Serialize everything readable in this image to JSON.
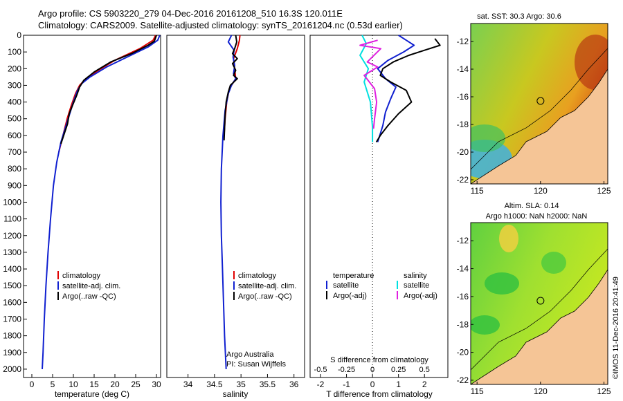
{
  "header": {
    "line1": "Argo profile: CS 5903220_279 04-Dec-2016 20161208_510 16.3S 120.011E",
    "line2": "Climatology: CARS2009. Satellite-adjusted climatology: synTS_20161204.nc (0.53d earlier)"
  },
  "colors": {
    "climatology": "#e00000",
    "satellite": "#1020d0",
    "argo": "#000000",
    "sal_sat": "#00e0e0",
    "sal_argo": "#e020e0"
  },
  "chart_data": [
    {
      "type": "line",
      "name": "temperature",
      "xlabel": "temperature (deg C)",
      "ylabel": "",
      "xlim": [
        -2,
        31
      ],
      "ylim": [
        2050,
        0
      ],
      "xticks": [
        0,
        5,
        10,
        15,
        20,
        25,
        30
      ],
      "yticks": [
        0,
        100,
        200,
        300,
        400,
        500,
        600,
        700,
        800,
        900,
        1000,
        1100,
        1200,
        1300,
        1400,
        1500,
        1600,
        1700,
        1800,
        1900,
        2000
      ],
      "legend": [
        "climatology",
        "satellite-adj. clim.",
        "Argo(..raw -QC)"
      ],
      "series": [
        {
          "name": "climatology",
          "color": "#e00000",
          "points": [
            [
              29.8,
              0
            ],
            [
              29.2,
              30
            ],
            [
              26,
              80
            ],
            [
              20,
              150
            ],
            [
              16,
              210
            ],
            [
              13,
              260
            ],
            [
              11.5,
              300
            ],
            [
              10.5,
              350
            ],
            [
              9.5,
              420
            ],
            [
              8.5,
              500
            ],
            [
              7.5,
              600
            ],
            [
              6.5,
              700
            ]
          ]
        },
        {
          "name": "satellite-adj. clim.",
          "color": "#1020d0",
          "points": [
            [
              30.8,
              0
            ],
            [
              30.3,
              30
            ],
            [
              28,
              70
            ],
            [
              23,
              130
            ],
            [
              18,
              190
            ],
            [
              14,
              250
            ],
            [
              12,
              290
            ],
            [
              11,
              330
            ],
            [
              10,
              400
            ],
            [
              9,
              480
            ],
            [
              8,
              560
            ],
            [
              7,
              640
            ],
            [
              6,
              760
            ],
            [
              5.2,
              900
            ],
            [
              4.5,
              1100
            ],
            [
              3.9,
              1300
            ],
            [
              3.4,
              1500
            ],
            [
              3.0,
              1700
            ],
            [
              2.7,
              1900
            ],
            [
              2.5,
              2000
            ]
          ]
        },
        {
          "name": "Argo(..raw -QC)",
          "color": "#000000",
          "points": [
            [
              30,
              0
            ],
            [
              29.5,
              35
            ],
            [
              28,
              60
            ],
            [
              24,
              110
            ],
            [
              19,
              160
            ],
            [
              15,
              220
            ],
            [
              12.5,
              270
            ],
            [
              11.5,
              310
            ],
            [
              10.8,
              360
            ],
            [
              9.8,
              420
            ],
            [
              9,
              470
            ],
            [
              8.6,
              530
            ],
            [
              7.8,
              590
            ],
            [
              7,
              650
            ]
          ]
        }
      ]
    },
    {
      "type": "line",
      "name": "salinity",
      "xlabel": "salinity",
      "xlim": [
        33.6,
        36.2
      ],
      "ylim": [
        2050,
        0
      ],
      "xticks": [
        34,
        34.5,
        35,
        35.5,
        36
      ],
      "xticklabels": [
        "34",
        "34.5",
        "35",
        "35.5",
        "36"
      ],
      "legend": [
        "climatology",
        "satellite-adj. clim.",
        "Argo(..raw -QC)"
      ],
      "annotation": [
        "Argo Australia",
        "PI: Susan Wijffels"
      ],
      "series": [
        {
          "name": "climatology",
          "color": "#e00000",
          "points": [
            [
              34.98,
              0
            ],
            [
              34.97,
              30
            ],
            [
              34.93,
              80
            ],
            [
              34.86,
              140
            ],
            [
              34.88,
              200
            ],
            [
              34.9,
              260
            ],
            [
              34.78,
              320
            ],
            [
              34.73,
              400
            ],
            [
              34.7,
              500
            ],
            [
              34.68,
              600
            ]
          ]
        },
        {
          "name": "satellite-adj. clim.",
          "color": "#1020d0",
          "points": [
            [
              34.82,
              0
            ],
            [
              34.76,
              40
            ],
            [
              34.87,
              90
            ],
            [
              34.85,
              130
            ],
            [
              34.88,
              180
            ],
            [
              34.86,
              230
            ],
            [
              34.9,
              260
            ],
            [
              34.82,
              300
            ],
            [
              34.76,
              350
            ],
            [
              34.7,
              450
            ],
            [
              34.66,
              600
            ],
            [
              34.63,
              800
            ],
            [
              34.62,
              1000
            ],
            [
              34.63,
              1200
            ],
            [
              34.65,
              1400
            ],
            [
              34.67,
              1600
            ],
            [
              34.69,
              1800
            ],
            [
              34.72,
              2000
            ]
          ]
        },
        {
          "name": "Argo(..raw -QC)",
          "color": "#000000",
          "points": [
            [
              34.9,
              0
            ],
            [
              34.92,
              40
            ],
            [
              34.88,
              80
            ],
            [
              34.84,
              110
            ],
            [
              34.93,
              140
            ],
            [
              34.84,
              170
            ],
            [
              34.9,
              210
            ],
            [
              34.86,
              240
            ],
            [
              34.93,
              260
            ],
            [
              34.8,
              300
            ],
            [
              34.76,
              340
            ],
            [
              34.72,
              400
            ],
            [
              34.7,
              480
            ],
            [
              34.69,
              560
            ],
            [
              34.68,
              630
            ]
          ]
        }
      ]
    },
    {
      "type": "line",
      "name": "difference",
      "xlabel": "T difference from climatology",
      "x2label": "S difference from climatology",
      "xlim": [
        -2.4,
        2.9
      ],
      "ylim": [
        2050,
        0
      ],
      "xticks": [
        -2,
        -1,
        0,
        1,
        2
      ],
      "x2lim": [
        -0.6,
        0.725
      ],
      "x2ticks": [
        -0.5,
        -0.25,
        0,
        0.25,
        0.5
      ],
      "x2ticklabels": [
        "-0.5",
        "-0.25",
        "0",
        "0.25",
        "0.5"
      ],
      "legend_temperature": {
        "heading": "temperature",
        "items": [
          "satellite",
          "Argo(-adj)"
        ]
      },
      "legend_salinity": {
        "heading": "salinity",
        "items": [
          "satellite",
          "Argo(-adj)"
        ]
      },
      "series": [
        {
          "name": "T satellite",
          "color": "#1020d0",
          "axis": "T",
          "points": [
            [
              1.0,
              0
            ],
            [
              1.3,
              30
            ],
            [
              1.6,
              60
            ],
            [
              1.2,
              100
            ],
            [
              0.6,
              150
            ],
            [
              0.2,
              200
            ],
            [
              0.5,
              260
            ],
            [
              0.9,
              310
            ],
            [
              0.7,
              380
            ],
            [
              0.5,
              460
            ],
            [
              0.4,
              540
            ],
            [
              0.2,
              640
            ]
          ]
        },
        {
          "name": "T Argo(-adj)",
          "color": "#000000",
          "axis": "T",
          "points": [
            [
              2.4,
              20
            ],
            [
              2.6,
              60
            ],
            [
              2.0,
              90
            ],
            [
              1.4,
              120
            ],
            [
              0.8,
              160
            ],
            [
              0.4,
              200
            ],
            [
              0.3,
              240
            ],
            [
              0.7,
              280
            ],
            [
              1.3,
              330
            ],
            [
              1.5,
              400
            ],
            [
              1.0,
              470
            ],
            [
              0.6,
              540
            ],
            [
              0.3,
              600
            ],
            [
              0.15,
              640
            ]
          ]
        },
        {
          "name": "S satellite",
          "color": "#00e0e0",
          "axis": "S",
          "points": [
            [
              -0.1,
              0
            ],
            [
              -0.06,
              50
            ],
            [
              -0.12,
              120
            ],
            [
              -0.04,
              200
            ],
            [
              -0.08,
              280
            ],
            [
              -0.02,
              400
            ],
            [
              0,
              550
            ],
            [
              0,
              640
            ]
          ]
        },
        {
          "name": "S Argo(-adj)",
          "color": "#e020e0",
          "axis": "S",
          "points": [
            [
              0.05,
              30
            ],
            [
              -0.12,
              60
            ],
            [
              0.08,
              80
            ],
            [
              -0.05,
              160
            ],
            [
              0.05,
              190
            ],
            [
              -0.08,
              240
            ],
            [
              0.02,
              320
            ],
            [
              0.04,
              400
            ],
            [
              0.02,
              500
            ],
            [
              0.01,
              560
            ]
          ]
        }
      ]
    },
    {
      "type": "heatmap",
      "name": "sst_map",
      "title": "sat. SST: 30.3 Argo: 30.6",
      "xlim": [
        114.5,
        125.3
      ],
      "ylim": [
        -22.3,
        -10.7
      ],
      "xticks": [
        115,
        120,
        125
      ],
      "yticks": [
        -12,
        -14,
        -16,
        -18,
        -20,
        -22
      ],
      "marker": [
        120,
        -16.3
      ]
    },
    {
      "type": "heatmap",
      "name": "sla_map",
      "title": "Altim. SLA: 0.14",
      "subtitle": "Argo h1000: NaN h2000: NaN",
      "xlim": [
        114.5,
        125.3
      ],
      "ylim": [
        -22.3,
        -10.7
      ],
      "xticks": [
        115,
        120,
        125
      ],
      "yticks": [
        -12,
        -14,
        -16,
        -18,
        -20,
        -22
      ],
      "marker": [
        120,
        -16.3
      ]
    }
  ],
  "credit": "©IMOS 11-Dec-2016 20:41:49"
}
